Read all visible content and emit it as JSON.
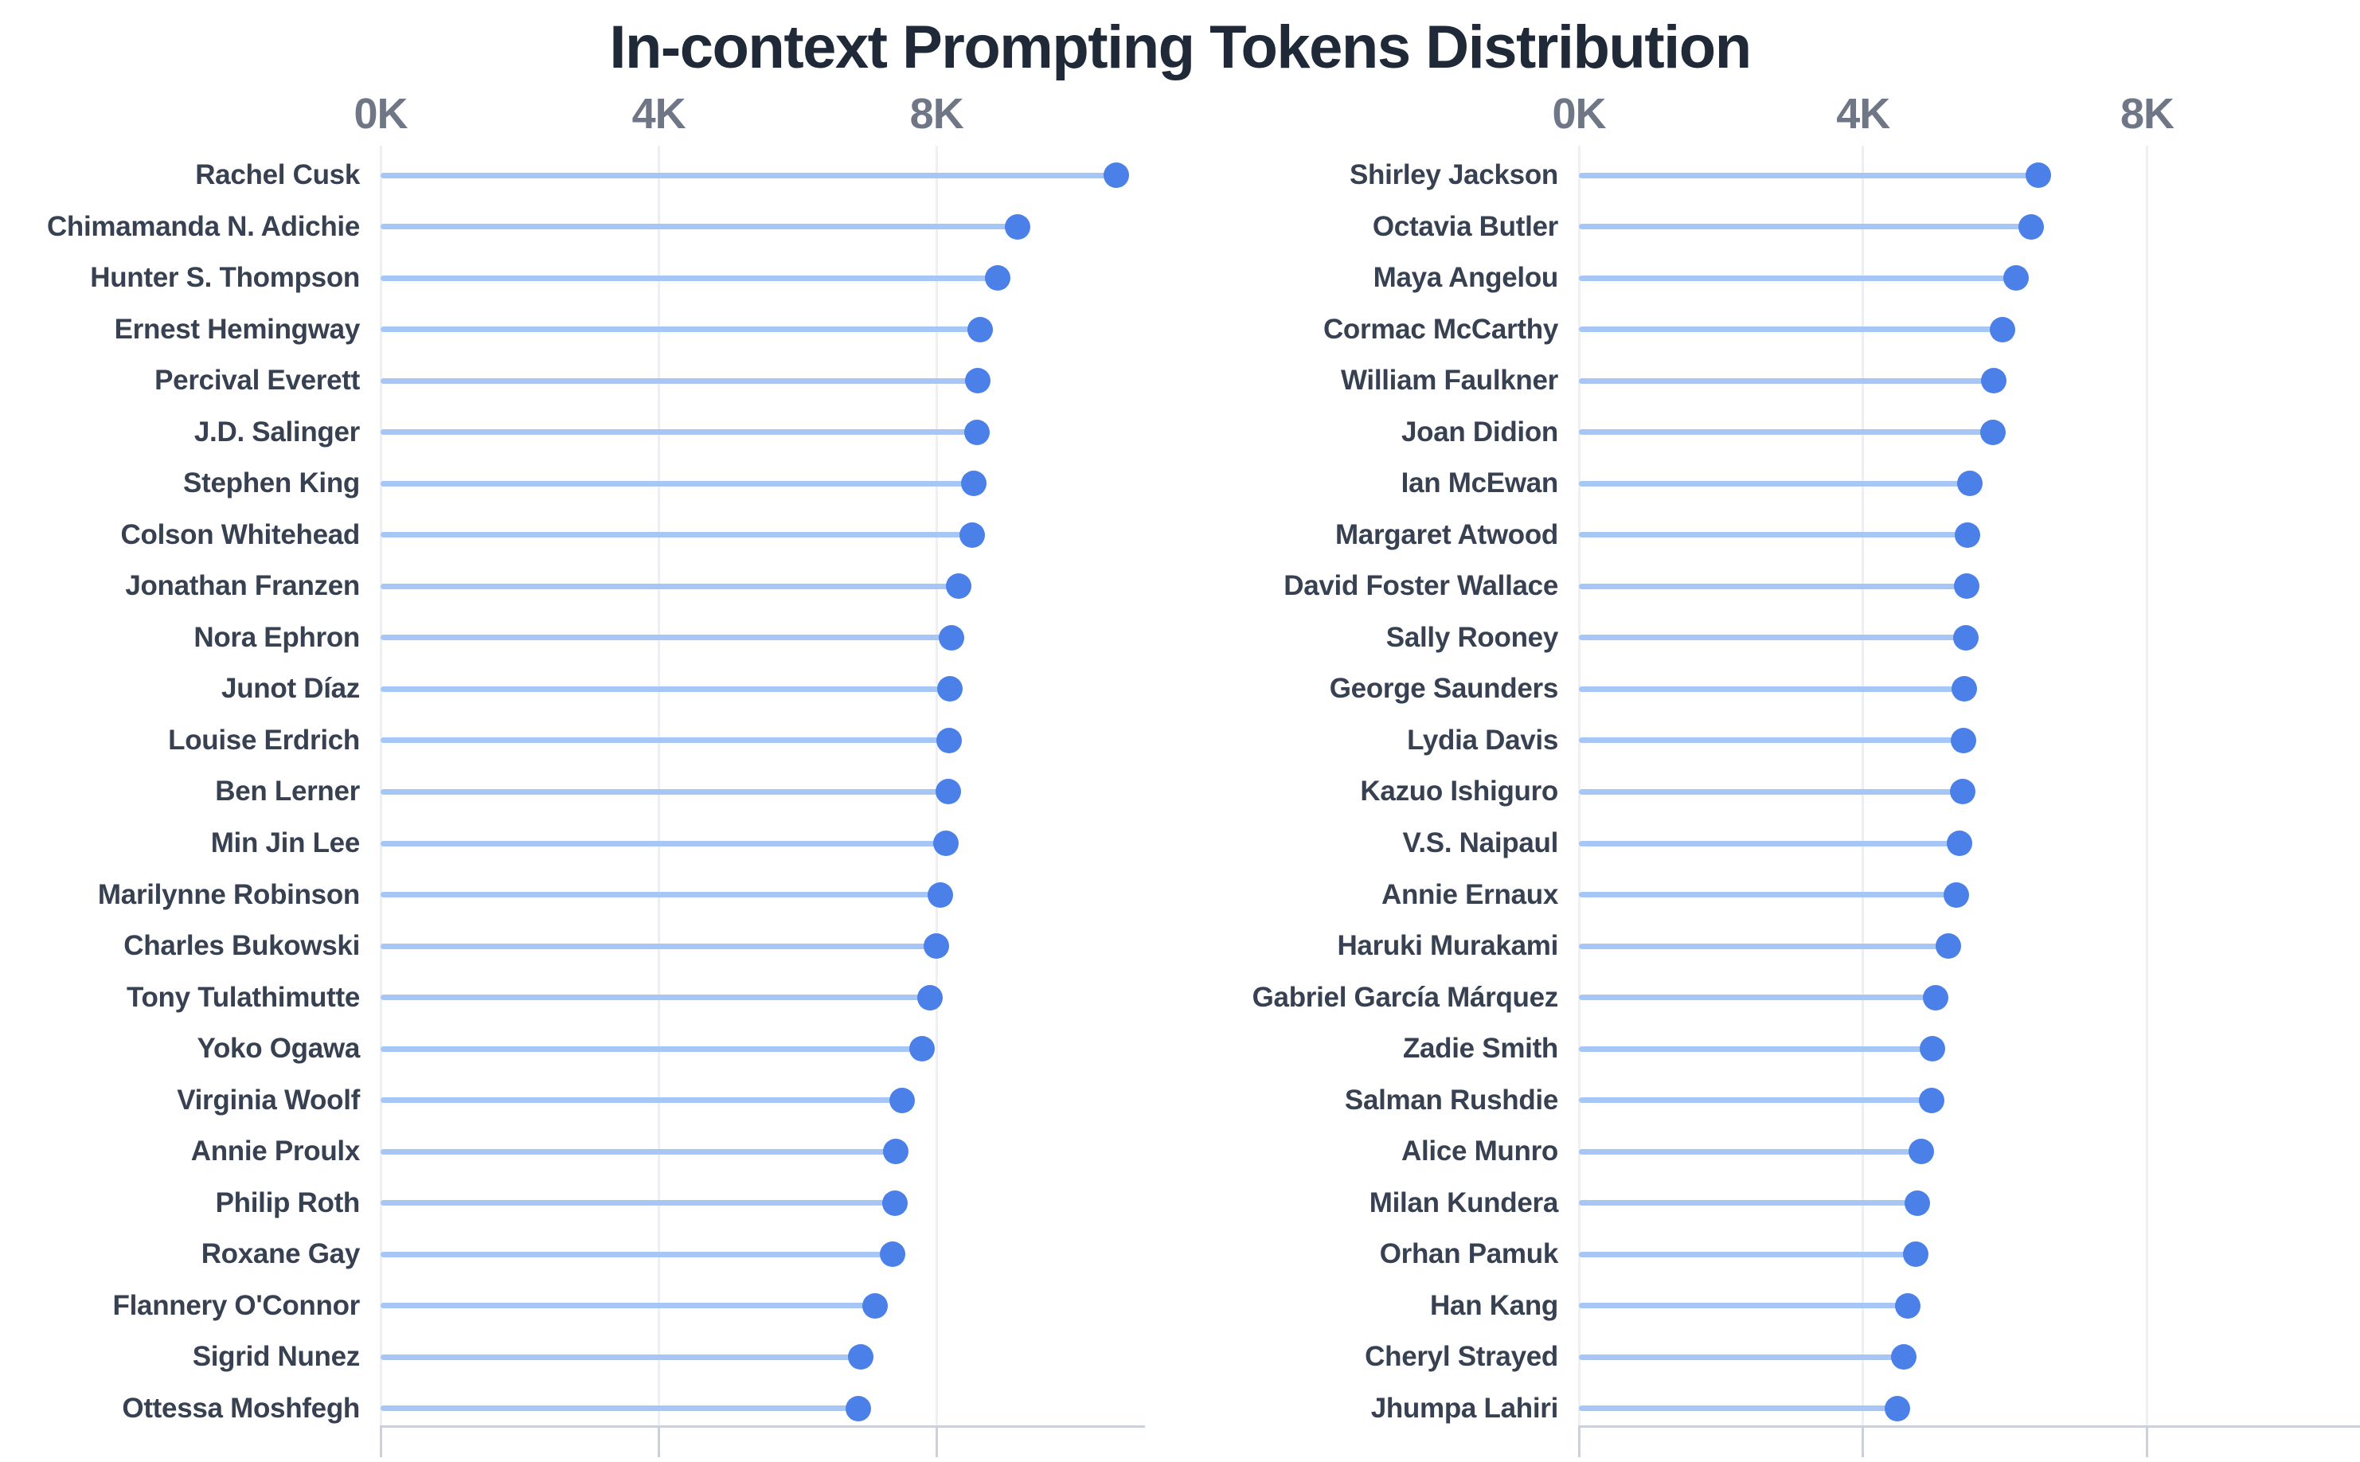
{
  "title": "In-context Prompting Tokens Distribution",
  "colors": {
    "background": "#ffffff",
    "title_text": "#1f2937",
    "category_label_text": "#374151",
    "axis_tick_text": "#6f7787",
    "gridline": "#edeff3",
    "axis_line": "#ccd1d9",
    "lollipop_line": "#a6c7f6",
    "lollipop_dot": "#4b80e9"
  },
  "chart_data": {
    "type": "bar",
    "variant": "horizontal-lollipop",
    "title": "In-context Prompting Tokens Distribution",
    "xlabel": "",
    "ylabel": "",
    "units": "tokens",
    "xlim": [
      0,
      11000
    ],
    "grid": true,
    "x_ticks": [
      {
        "label": "0K",
        "value": 0
      },
      {
        "label": "4K",
        "value": 4000
      },
      {
        "label": "8K",
        "value": 8000
      }
    ],
    "panels": [
      {
        "name": "left",
        "categories": [
          "Rachel Cusk",
          "Chimamanda N. Adichie",
          "Hunter S. Thompson",
          "Ernest Hemingway",
          "Percival Everett",
          "J.D. Salinger",
          "Stephen King",
          "Colson Whitehead",
          "Jonathan Franzen",
          "Nora Ephron",
          "Junot Díaz",
          "Louise Erdrich",
          "Ben Lerner",
          "Min Jin Lee",
          "Marilynne Robinson",
          "Charles Bukowski",
          "Tony Tulathimutte",
          "Yoko Ogawa",
          "Virginia Woolf",
          "Annie Proulx",
          "Philip Roth",
          "Roxane Gay",
          "Flannery O'Connor",
          "Sigrid Nunez",
          "Ottessa Moshfegh"
        ],
        "values": [
          10590,
          9170,
          8880,
          8630,
          8590,
          8580,
          8540,
          8510,
          8320,
          8210,
          8190,
          8180,
          8175,
          8140,
          8060,
          8000,
          7910,
          7790,
          7500,
          7410,
          7400,
          7370,
          7120,
          6910,
          6880
        ]
      },
      {
        "name": "right",
        "categories": [
          "Shirley Jackson",
          "Octavia Butler",
          "Maya Angelou",
          "Cormac McCarthy",
          "William Faulkner",
          "Joan Didion",
          "Ian McEwan",
          "Margaret Atwood",
          "David Foster Wallace",
          "Sally Rooney",
          "George Saunders",
          "Lydia Davis",
          "Kazuo Ishiguro",
          "V.S. Naipaul",
          "Annie Ernaux",
          "Haruki Murakami",
          "Gabriel García Márquez",
          "Zadie Smith",
          "Salman Rushdie",
          "Alice Munro",
          "Milan Kundera",
          "Orhan Pamuk",
          "Han Kang",
          "Cheryl Strayed",
          "Jhumpa Lahiri"
        ],
        "values": [
          6470,
          6370,
          6160,
          5960,
          5840,
          5830,
          5500,
          5470,
          5460,
          5450,
          5430,
          5420,
          5410,
          5360,
          5310,
          5200,
          5020,
          4980,
          4970,
          4820,
          4770,
          4740,
          4630,
          4570,
          4490
        ]
      }
    ]
  }
}
